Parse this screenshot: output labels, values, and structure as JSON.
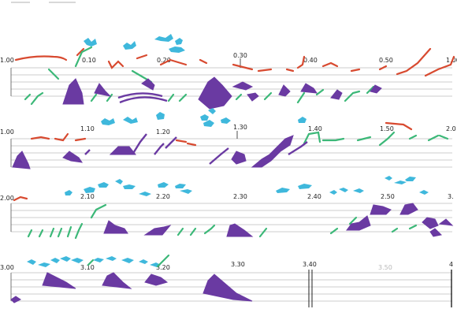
{
  "score": {
    "systems": [
      {
        "start_label": "1.00",
        "markers": [
          "0.10",
          "0.20",
          "0.30",
          "0.40",
          "0.50"
        ],
        "end_label": "1.00"
      },
      {
        "start_label": "1.00",
        "markers": [
          "1.10",
          "1.20",
          "1.30",
          "1.40",
          "1.50"
        ],
        "end_label": "2.0"
      },
      {
        "start_label": "2.00",
        "markers": [
          "2.10",
          "2.20",
          "2.30",
          "2.40",
          "2.50"
        ],
        "end_label": "3."
      },
      {
        "start_label": "3.00",
        "markers": [
          "3.10",
          "3.20",
          "3.30",
          "3.40",
          "3.50"
        ],
        "end_label": "4"
      }
    ],
    "colors": {
      "staff": "#9a9a9a",
      "red": "#d84a30",
      "green": "#3cb878",
      "cyan": "#3fb8dc",
      "purple": "#6a3aa2"
    },
    "end_barline_after": "3.40"
  }
}
